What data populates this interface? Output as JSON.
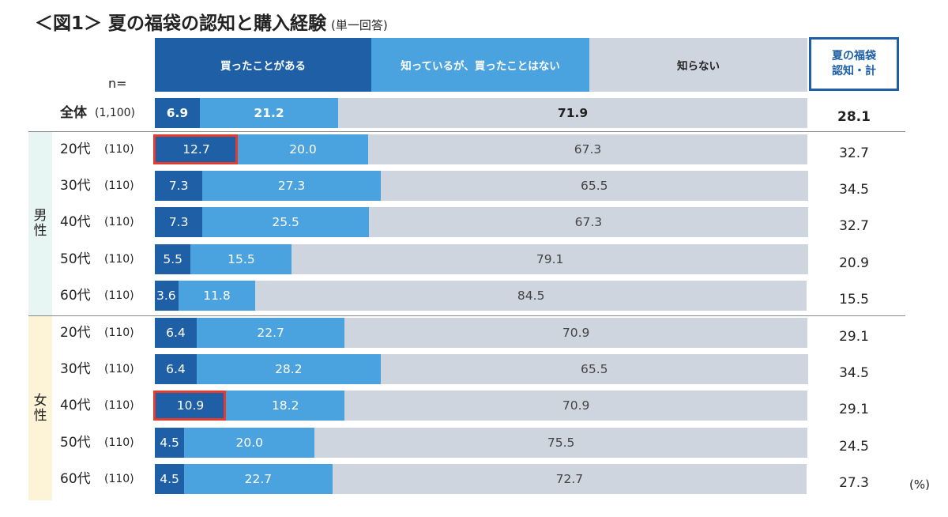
{
  "title": {
    "main": "＜図1＞ 夏の福袋の認知と購入経験",
    "sub": "(単一回答)"
  },
  "header": {
    "n_label": "n=",
    "total_label_line1": "夏の福袋",
    "total_label_line2": "認知・計"
  },
  "groups": [
    {
      "label": "男性"
    },
    {
      "label": "女性"
    }
  ],
  "unit_label": "(%)",
  "colors": {
    "bought": "#1e5fa6",
    "know_not_bought": "#4aa3df",
    "dont_know": "#cfd5de",
    "highlight": "#e53b2c"
  },
  "chart_data": {
    "type": "bar",
    "orientation": "horizontal",
    "stacked": true,
    "percent_stacked": true,
    "series": [
      {
        "name": "買ったことがある",
        "values": [
          6.9,
          12.7,
          7.3,
          7.3,
          5.5,
          3.6,
          6.4,
          6.4,
          10.9,
          4.5,
          4.5
        ]
      },
      {
        "name": "知っているが、買ったことはない",
        "values": [
          21.2,
          20.0,
          27.3,
          25.5,
          15.5,
          11.8,
          22.7,
          28.2,
          18.2,
          20.0,
          22.7
        ]
      },
      {
        "name": "知らない",
        "values": [
          71.9,
          67.3,
          65.5,
          67.3,
          79.1,
          84.5,
          70.9,
          65.5,
          70.9,
          75.5,
          72.7
        ]
      }
    ],
    "value_labels": [
      [
        "6.9",
        "21.2",
        "71.9"
      ],
      [
        "12.7",
        "20.0",
        "67.3"
      ],
      [
        "7.3",
        "27.3",
        "65.5"
      ],
      [
        "7.3",
        "25.5",
        "67.3"
      ],
      [
        "5.5",
        "15.5",
        "79.1"
      ],
      [
        "3.6",
        "11.8",
        "84.5"
      ],
      [
        "6.4",
        "22.7",
        "70.9"
      ],
      [
        "6.4",
        "28.2",
        "65.5"
      ],
      [
        "10.9",
        "18.2",
        "70.9"
      ],
      [
        "4.5",
        "20.0",
        "75.5"
      ],
      [
        "4.5",
        "22.7",
        "72.7"
      ]
    ],
    "rows": [
      {
        "label": "全体",
        "n": "(1,100)",
        "group": null,
        "total": "28.1",
        "highlight": false
      },
      {
        "label": "20代",
        "n": "(110)",
        "group": "男性",
        "total": "32.7",
        "highlight": true
      },
      {
        "label": "30代",
        "n": "(110)",
        "group": "男性",
        "total": "34.5",
        "highlight": false
      },
      {
        "label": "40代",
        "n": "(110)",
        "group": "男性",
        "total": "32.7",
        "highlight": false
      },
      {
        "label": "50代",
        "n": "(110)",
        "group": "男性",
        "total": "20.9",
        "highlight": false
      },
      {
        "label": "60代",
        "n": "(110)",
        "group": "男性",
        "total": "15.5",
        "highlight": false
      },
      {
        "label": "20代",
        "n": "(110)",
        "group": "女性",
        "total": "29.1",
        "highlight": false
      },
      {
        "label": "30代",
        "n": "(110)",
        "group": "女性",
        "total": "34.5",
        "highlight": false
      },
      {
        "label": "40代",
        "n": "(110)",
        "group": "女性",
        "total": "29.1",
        "highlight": true
      },
      {
        "label": "50代",
        "n": "(110)",
        "group": "女性",
        "total": "24.5",
        "highlight": false
      },
      {
        "label": "60代",
        "n": "(110)",
        "group": "女性",
        "total": "27.3",
        "highlight": false
      }
    ],
    "xlim": [
      0,
      100
    ],
    "legend_placement": "top",
    "grid": false
  }
}
